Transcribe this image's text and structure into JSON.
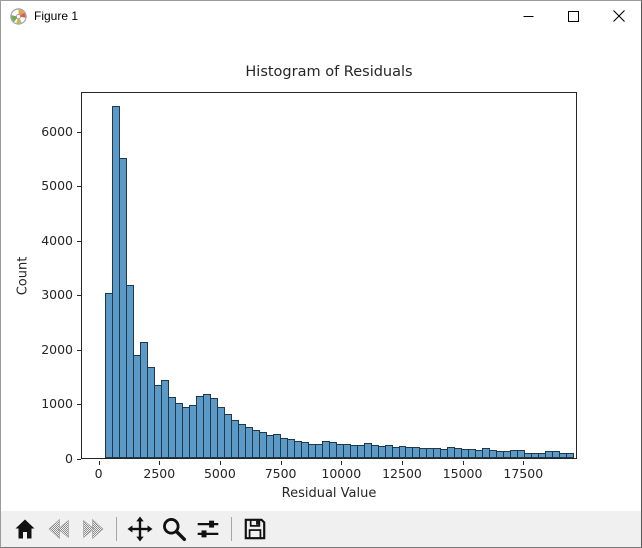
{
  "window": {
    "title": "Figure 1",
    "controls": [
      {
        "name": "minimize"
      },
      {
        "name": "maximize"
      },
      {
        "name": "close"
      }
    ]
  },
  "chart_data": {
    "type": "bar",
    "subtype": "histogram",
    "title": "Histogram of Residuals",
    "xlabel": "Residual Value",
    "ylabel": "Count",
    "x_ticks": [
      0,
      2500,
      5000,
      7500,
      10000,
      12500,
      15000,
      17500
    ],
    "y_ticks": [
      0,
      1000,
      2000,
      3000,
      4000,
      5000,
      6000
    ],
    "xlim": [
      -725,
      19712
    ],
    "ylim": [
      0,
      6723
    ],
    "grid": false,
    "legend": null,
    "bin_start": 220,
    "bin_width": 288,
    "counts": [
      3030,
      6450,
      5490,
      3170,
      1890,
      2120,
      1660,
      1330,
      1420,
      1110,
      1010,
      930,
      980,
      1140,
      1170,
      1100,
      930,
      800,
      690,
      630,
      560,
      520,
      480,
      430,
      440,
      370,
      345,
      310,
      285,
      250,
      255,
      305,
      290,
      265,
      255,
      245,
      245,
      280,
      230,
      215,
      230,
      205,
      215,
      200,
      200,
      190,
      185,
      180,
      165,
      195,
      175,
      165,
      160,
      155,
      190,
      155,
      130,
      120,
      150,
      140,
      90,
      95,
      95,
      120,
      130,
      95,
      85
    ],
    "bar_color": "#5b99c6",
    "bar_edge_color": "#21374a",
    "axis_color": "#262626"
  },
  "toolbar": {
    "buttons": [
      {
        "name": "home",
        "disabled": false
      },
      {
        "name": "back",
        "disabled": true
      },
      {
        "name": "forward",
        "disabled": true
      },
      {
        "name": "pan",
        "disabled": false
      },
      {
        "name": "zoom-to-rect",
        "disabled": false
      },
      {
        "name": "configure-subplots",
        "disabled": false
      },
      {
        "name": "save",
        "disabled": false
      }
    ],
    "message": ""
  }
}
